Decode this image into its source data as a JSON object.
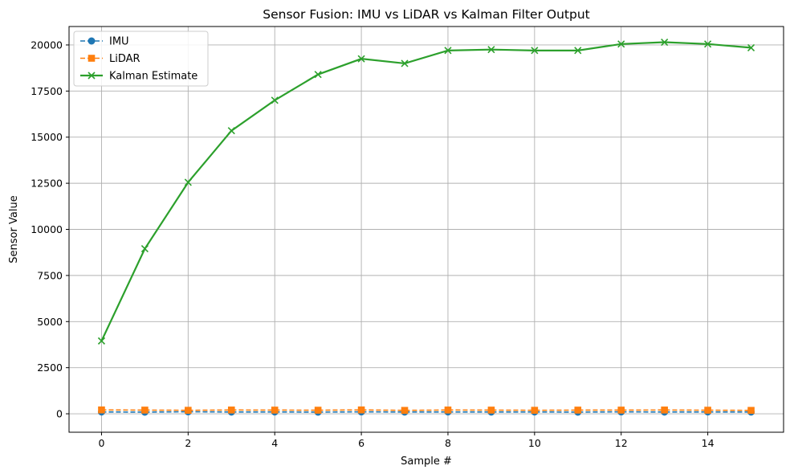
{
  "chart_data": {
    "type": "line",
    "title": "Sensor Fusion: IMU vs LiDAR vs Kalman Filter Output",
    "xlabel": "Sample #",
    "ylabel": "Sensor Value",
    "xlim": [
      -0.75,
      15.75
    ],
    "ylim": [
      -1000,
      21000
    ],
    "xticks": [
      0,
      2,
      4,
      6,
      8,
      10,
      12,
      14
    ],
    "yticks": [
      0,
      2500,
      5000,
      7500,
      10000,
      12500,
      15000,
      17500,
      20000
    ],
    "grid": true,
    "legend_position": "top-left",
    "x": [
      0,
      1,
      2,
      3,
      4,
      5,
      6,
      7,
      8,
      9,
      10,
      11,
      12,
      13,
      14,
      15
    ],
    "series": [
      {
        "name": "IMU",
        "color": "#1f77b4",
        "linestyle": "dashed",
        "marker": "circle",
        "values": [
          100,
          90,
          110,
          95,
          100,
          90,
          105,
          95,
          100,
          95,
          100,
          90,
          105,
          95,
          100,
          95
        ]
      },
      {
        "name": "LiDAR",
        "color": "#ff7f0e",
        "linestyle": "dashed",
        "marker": "square",
        "values": [
          210,
          200,
          190,
          205,
          200,
          195,
          210,
          185,
          205,
          200,
          190,
          200,
          200,
          205,
          195,
          185
        ]
      },
      {
        "name": "Kalman Estimate",
        "color": "#2ca02c",
        "linestyle": "solid",
        "marker": "x",
        "values": [
          3950,
          8950,
          12550,
          15350,
          17000,
          18400,
          19250,
          19000,
          19700,
          19750,
          19700,
          19700,
          20050,
          20150,
          20050,
          19850
        ]
      }
    ]
  }
}
